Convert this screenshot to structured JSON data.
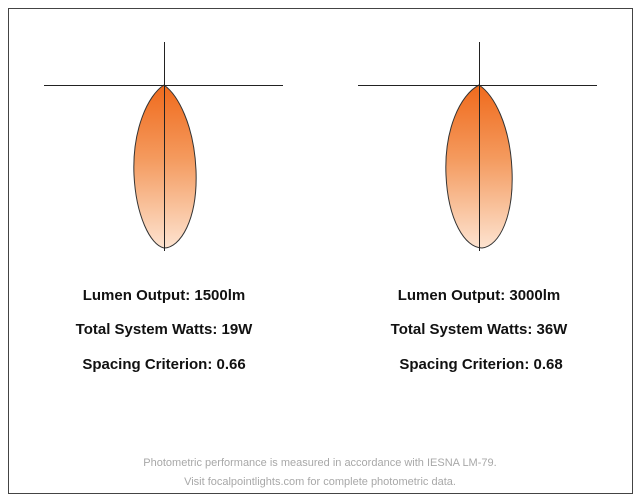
{
  "panels": [
    {
      "lumen_output": "Lumen Output: 1500lm",
      "system_watts": "Total System Watts: 19W",
      "spacing_criterion": "Spacing Criterion: 0.66"
    },
    {
      "lumen_output": "Lumen Output: 3000lm",
      "system_watts": "Total System Watts: 36W",
      "spacing_criterion": "Spacing Criterion: 0.68"
    }
  ],
  "footer": {
    "line1": "Photometric performance is measured in accordance with IESNA LM-79.",
    "line2": "Visit focalpointlights.com for complete photometric data."
  }
}
